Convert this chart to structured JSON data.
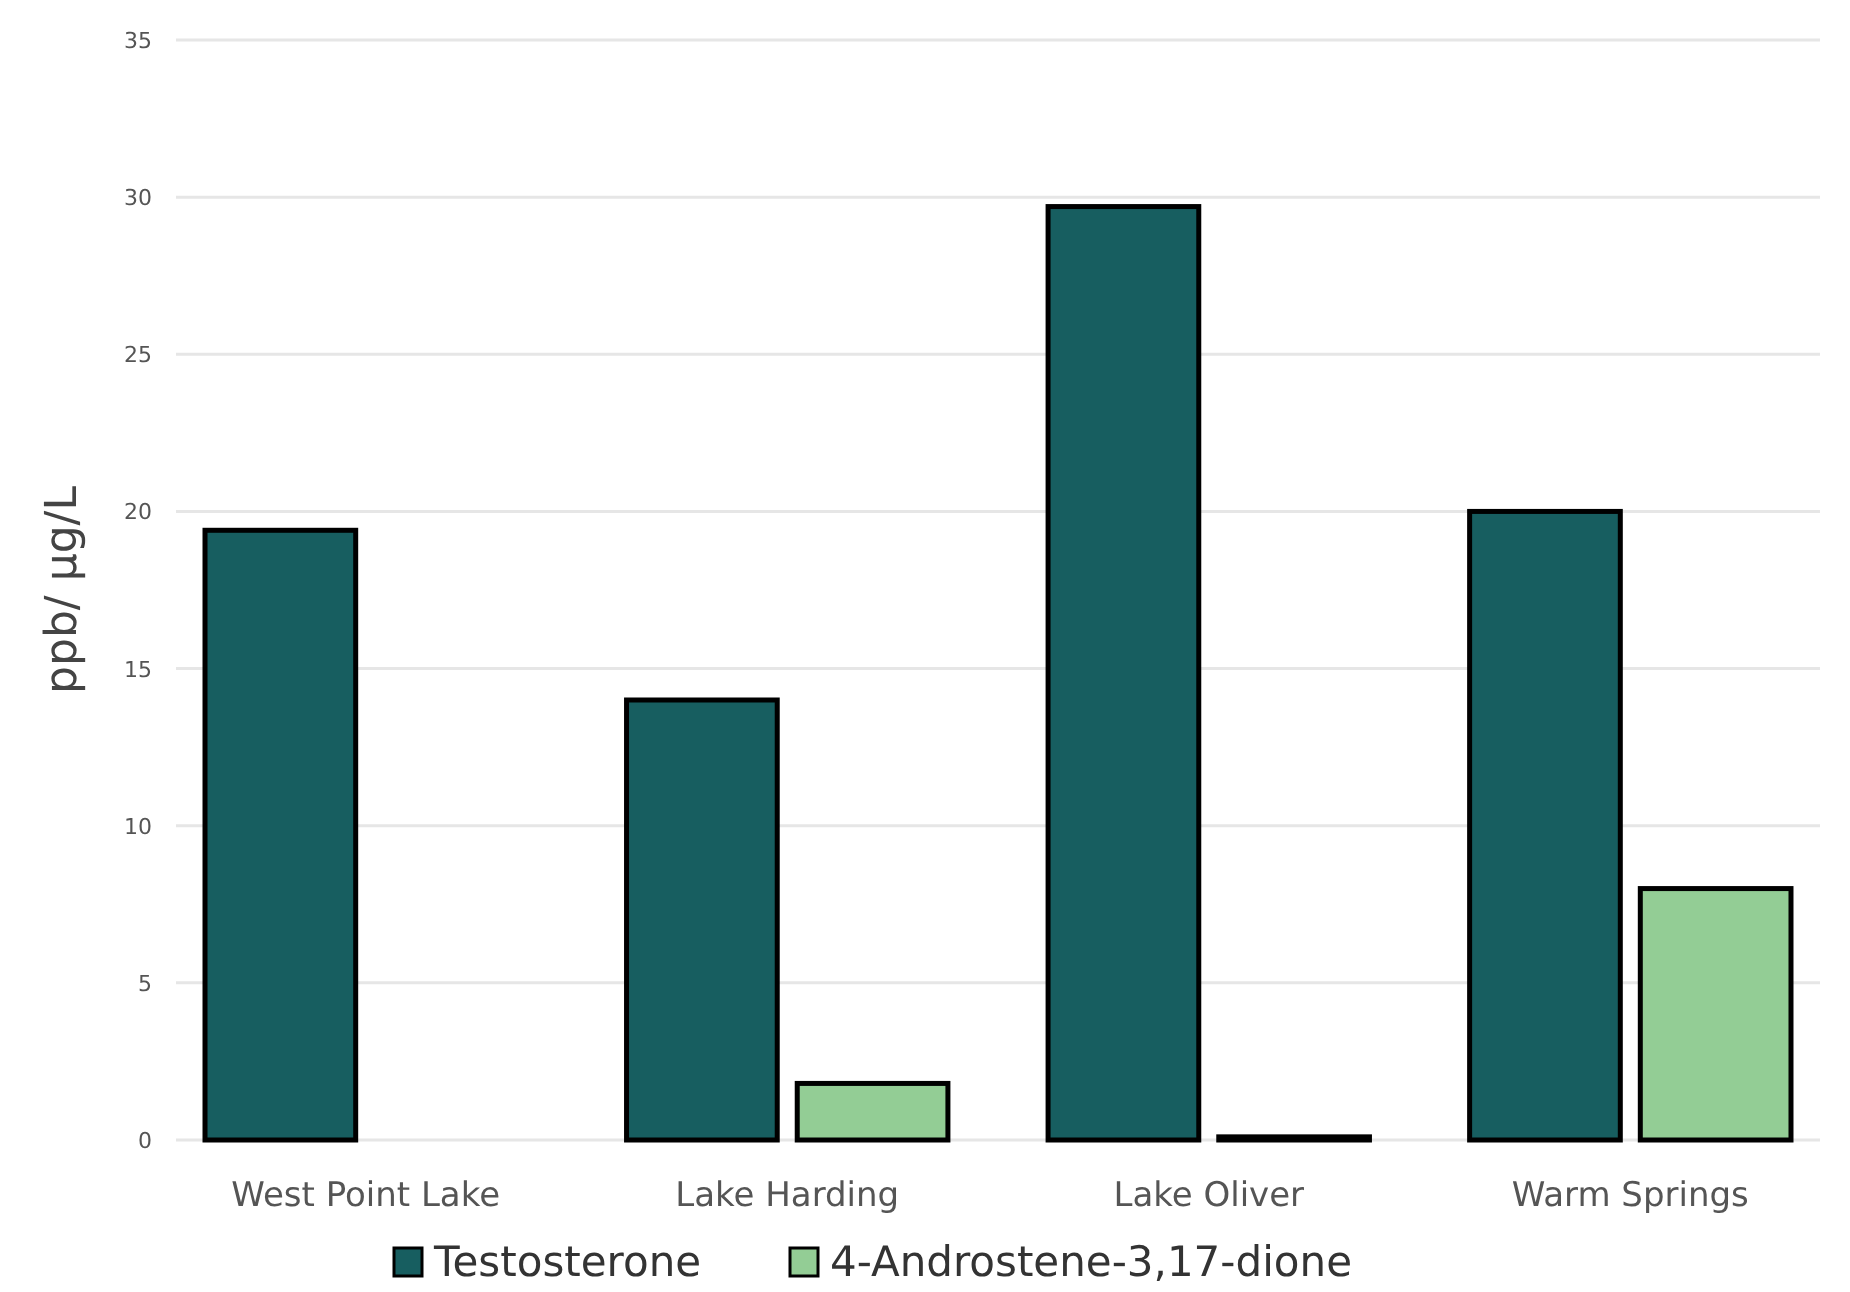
{
  "chart_data": {
    "type": "bar",
    "ylabel": "ppb/ µg/L",
    "categories": [
      "West Point Lake",
      "Lake Harding",
      "Lake Oliver",
      "Warm Springs"
    ],
    "series": [
      {
        "name": "Testosterone",
        "color": "#175e60",
        "values": [
          19.4,
          14,
          29.7,
          20
        ]
      },
      {
        "name": "4-Androstene-3,17-dione",
        "color": "#93cd95",
        "values": [
          null,
          1.8,
          0.1,
          8
        ]
      }
    ],
    "ylim": [
      0,
      35
    ],
    "yticks": [
      0,
      5,
      10,
      15,
      20,
      25,
      30,
      35
    ],
    "grid": "y",
    "legend": "bottom"
  }
}
